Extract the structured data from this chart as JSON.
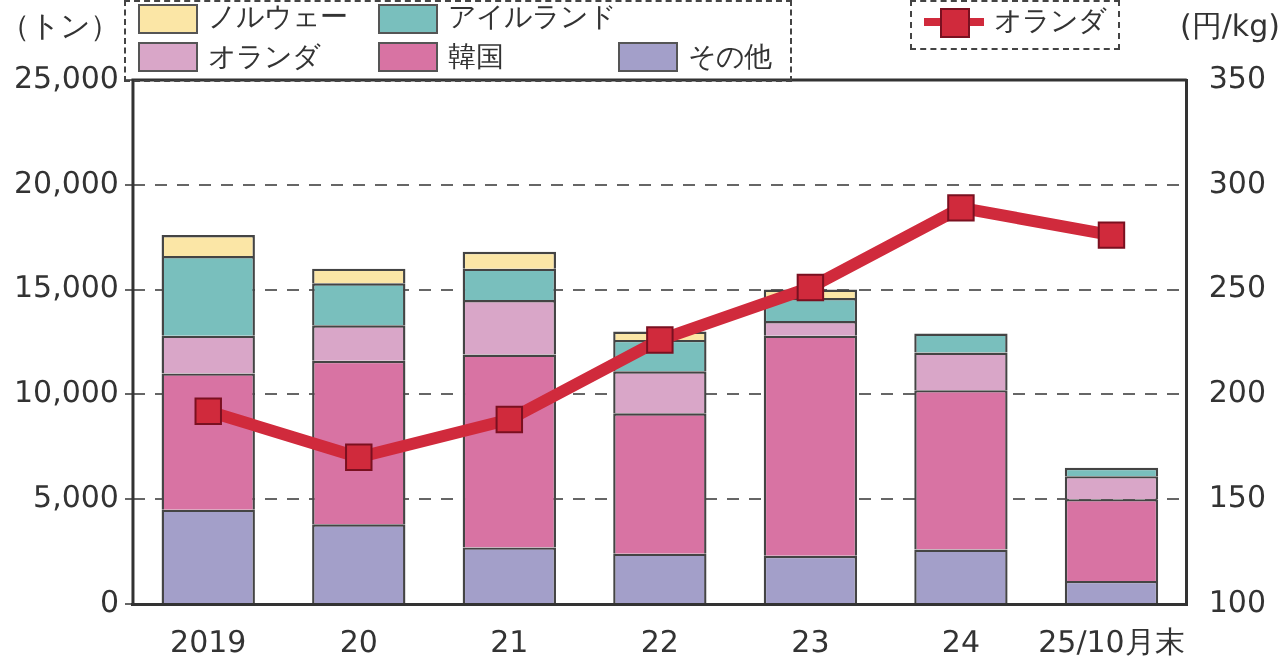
{
  "chart_data": {
    "type": "bar",
    "stacked": true,
    "ylabel": "（トン）",
    "y2label": "(円/kg)",
    "categories": [
      "2019",
      "20",
      "21",
      "22",
      "23",
      "24",
      "25/10月末"
    ],
    "series": [
      {
        "name": "その他",
        "color": "#a39fc9",
        "values": [
          4500,
          3800,
          2700,
          2400,
          2300,
          2600,
          1100
        ]
      },
      {
        "name": "韓国",
        "color": "#d873a3",
        "values": [
          6500,
          7800,
          9200,
          6700,
          10500,
          7600,
          3900
        ]
      },
      {
        "name": "オランダ",
        "color": "#d9a6c8",
        "values": [
          1800,
          1700,
          2600,
          2000,
          700,
          1800,
          1100
        ]
      },
      {
        "name": "アイルランド",
        "color": "#79bfbd",
        "values": [
          3800,
          2000,
          1500,
          1500,
          1100,
          900,
          400
        ]
      },
      {
        "name": "ノルウェー",
        "color": "#fbe6a6",
        "values": [
          1000,
          700,
          800,
          400,
          400,
          null,
          null
        ]
      },
      {
        "name": "オランダ",
        "type": "line",
        "axis": "y2",
        "color": "#d02a3c",
        "marker": "square",
        "values": [
          192,
          170,
          188,
          226,
          251,
          289,
          276
        ]
      }
    ],
    "ylim": [
      0,
      25000
    ],
    "yticks": [
      0,
      {
        "value": 5000,
        "label": "5,000"
      },
      {
        "value": 10000,
        "label": "10,000"
      },
      {
        "value": 15000,
        "label": "15,000"
      },
      {
        "value": 20000,
        "label": "20,000"
      },
      {
        "value": 25000,
        "label": "25,000"
      }
    ],
    "y2lim": [
      100,
      350
    ],
    "y2ticks": [
      100,
      150,
      200,
      250,
      300,
      350
    ],
    "grid": "y",
    "legend": "top"
  }
}
